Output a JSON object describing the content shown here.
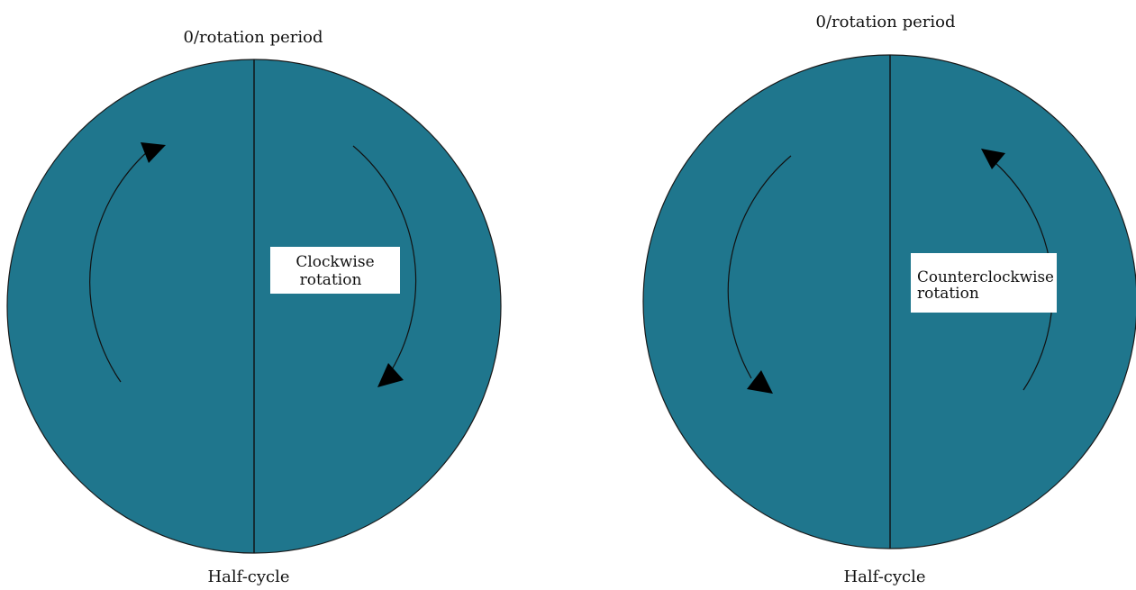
{
  "colors": {
    "disc_fill": "#1f768d",
    "disc_stroke": "#1a1a1a",
    "arrow": "#000000",
    "label_box": "#ffffff",
    "background": "#ffffff"
  },
  "left_diagram": {
    "top_label": "0/rotation period",
    "bottom_label": "Half-cycle",
    "box_line1": "Clockwise",
    "box_line2": "rotation",
    "direction": "clockwise"
  },
  "right_diagram": {
    "top_label": "0/rotation period",
    "bottom_label": "Half-cycle",
    "box_line1": "Counterclockwise",
    "box_line2": "rotation",
    "direction": "counterclockwise"
  }
}
